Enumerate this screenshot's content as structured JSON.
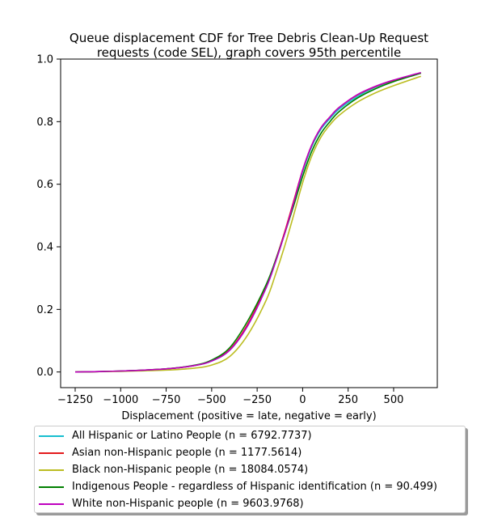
{
  "chart_data": {
    "type": "line",
    "title": "Queue displacement CDF for Tree Debris Clean-Up Request requests (code SEL), graph covers 95th percentile",
    "title_lines": [
      "Queue displacement CDF for Tree Debris Clean-Up Request",
      "requests (code SEL), graph covers 95th percentile"
    ],
    "xlabel": "Displacement (positive = late, negative = early)",
    "ylabel": "",
    "xlim": [
      -1330,
      740
    ],
    "ylim": [
      -0.05,
      1.0
    ],
    "x_ticks": [
      -1250,
      -1000,
      -750,
      -500,
      -250,
      0,
      250,
      500
    ],
    "x_tick_labels": [
      "−1250",
      "−1000",
      "−750",
      "−500",
      "−250",
      "0",
      "250",
      "500"
    ],
    "y_ticks": [
      0.0,
      0.2,
      0.4,
      0.6,
      0.8,
      1.0
    ],
    "y_tick_labels": [
      "0.0",
      "0.2",
      "0.4",
      "0.6",
      "0.8",
      "1.0"
    ],
    "grid": false,
    "legend_position": "below",
    "x": [
      -1250,
      -1000,
      -750,
      -600,
      -500,
      -400,
      -300,
      -200,
      -150,
      -100,
      -50,
      0,
      50,
      100,
      150,
      200,
      300,
      400,
      500,
      650
    ],
    "series": [
      {
        "name": "All Hispanic or Latino People (n = 6792.7737)",
        "color": "#17becf",
        "values": [
          0.0,
          0.003,
          0.01,
          0.02,
          0.035,
          0.07,
          0.15,
          0.27,
          0.35,
          0.44,
          0.54,
          0.64,
          0.72,
          0.775,
          0.81,
          0.84,
          0.88,
          0.91,
          0.93,
          0.955
        ]
      },
      {
        "name": "Asian non-Hispanic people (n = 1177.5614)",
        "color": "#e41a1c",
        "values": [
          0.0,
          0.003,
          0.01,
          0.02,
          0.036,
          0.072,
          0.155,
          0.275,
          0.355,
          0.445,
          0.545,
          0.645,
          0.725,
          0.78,
          0.815,
          0.845,
          0.885,
          0.912,
          0.932,
          0.955
        ]
      },
      {
        "name": "Black non-Hispanic people (n = 18084.0574)",
        "color": "#bcbd22",
        "values": [
          0.0,
          0.002,
          0.006,
          0.012,
          0.022,
          0.05,
          0.12,
          0.23,
          0.31,
          0.4,
          0.5,
          0.605,
          0.69,
          0.75,
          0.79,
          0.82,
          0.862,
          0.892,
          0.915,
          0.945
        ]
      },
      {
        "name": "Indigenous People - regardless of Hispanic identification (n = 90.499)",
        "color": "#008000",
        "values": [
          0.0,
          0.003,
          0.01,
          0.021,
          0.038,
          0.078,
          0.165,
          0.28,
          0.355,
          0.44,
          0.53,
          0.625,
          0.705,
          0.762,
          0.8,
          0.832,
          0.875,
          0.905,
          0.928,
          0.955
        ]
      },
      {
        "name": "White non-Hispanic people (n = 9603.9768)",
        "color": "#bf00bf",
        "values": [
          0.0,
          0.003,
          0.01,
          0.02,
          0.035,
          0.07,
          0.15,
          0.27,
          0.35,
          0.44,
          0.54,
          0.645,
          0.725,
          0.78,
          0.815,
          0.845,
          0.886,
          0.913,
          0.933,
          0.957
        ]
      }
    ]
  }
}
